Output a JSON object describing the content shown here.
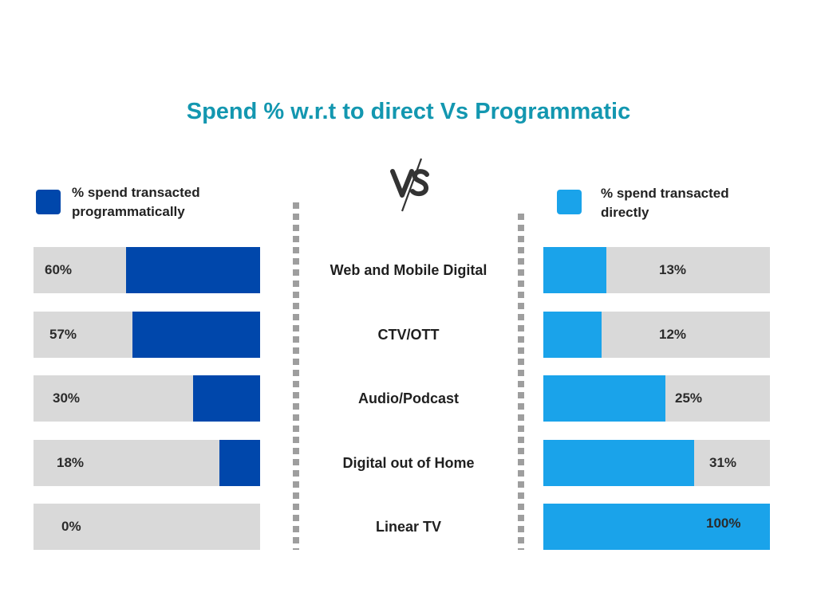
{
  "chart_data": {
    "type": "bar",
    "title": "Spend % w.r.t to direct Vs Programmatic",
    "vs_label": "VS",
    "categories": [
      "Web and Mobile Digital",
      "CTV/OTT",
      "Audio/Podcast",
      "Digital out of Home",
      "Linear TV"
    ],
    "series": [
      {
        "name": "% spend transacted programmatically",
        "values": [
          60,
          57,
          30,
          18,
          0
        ],
        "labels": [
          "60%",
          "57%",
          "30%",
          "18%",
          "0%"
        ],
        "color": "#0047ab",
        "direction": "right-to-left"
      },
      {
        "name": "% spend transacted directly",
        "values": [
          13,
          12,
          25,
          31,
          100
        ],
        "labels": [
          "13%",
          "12%",
          "25%",
          "31%",
          "100%"
        ],
        "color": "#1aa3ea",
        "direction": "left-to-right"
      }
    ],
    "xlim": [
      0,
      100
    ],
    "track_color": "#d9d9d9",
    "grid": false,
    "legend": "top"
  }
}
